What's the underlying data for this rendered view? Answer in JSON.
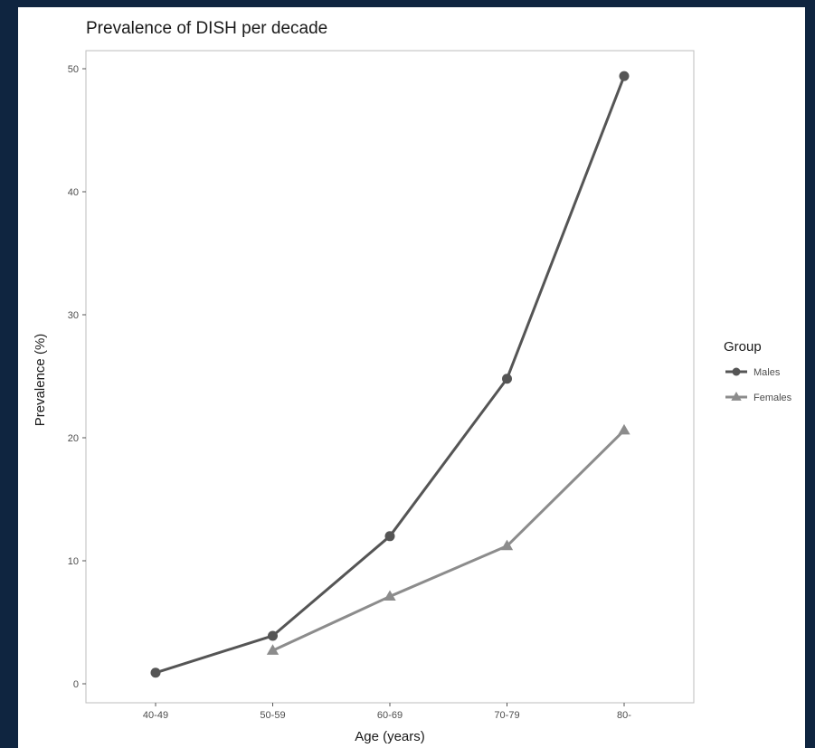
{
  "chart_data": {
    "type": "line",
    "title": "Prevalence of DISH per decade",
    "xlabel": "Age (years)",
    "ylabel": "Prevalence (%)",
    "categories": [
      "40-49",
      "50-59",
      "60-69",
      "70-79",
      "80-"
    ],
    "ylim": [
      0,
      50
    ],
    "yticks": [
      0,
      10,
      20,
      30,
      40,
      50
    ],
    "grid": false,
    "legend": {
      "title": "Group",
      "placement": "right"
    },
    "series": [
      {
        "name": "Males",
        "marker": "circle",
        "color": "#555555",
        "values": [
          0.9,
          3.9,
          12.0,
          24.8,
          49.4
        ]
      },
      {
        "name": "Females",
        "marker": "triangle",
        "color": "#8c8c8c",
        "values": [
          null,
          2.7,
          7.1,
          11.2,
          20.6
        ]
      }
    ]
  }
}
